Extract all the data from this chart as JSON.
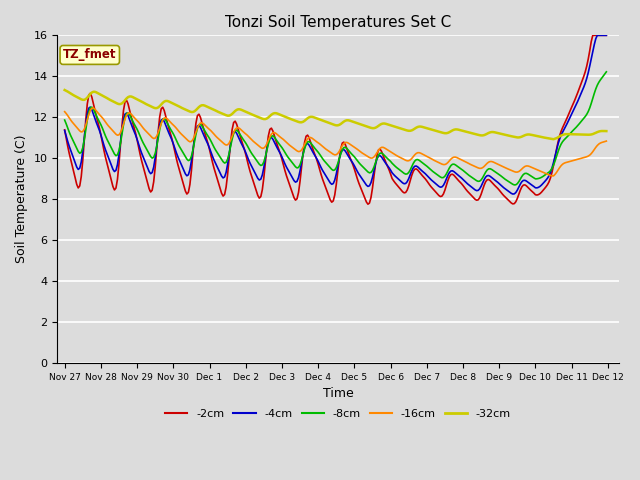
{
  "title": "Tonzi Soil Temperatures Set C",
  "xlabel": "Time",
  "ylabel": "Soil Temperature (C)",
  "ylim": [
    0,
    16
  ],
  "yticks": [
    0,
    2,
    4,
    6,
    8,
    10,
    12,
    14,
    16
  ],
  "bg_color": "#dcdcdc",
  "annotation_text": "TZ_fmet",
  "annotation_color": "#8b0000",
  "annotation_bg": "#ffffcc",
  "legend_entries": [
    "-2cm",
    "-4cm",
    "-8cm",
    "-16cm",
    "-32cm"
  ],
  "line_colors": [
    "#cc0000",
    "#0000cc",
    "#00bb00",
    "#ff8800",
    "#cccc00"
  ],
  "line_widths": [
    1.2,
    1.2,
    1.2,
    1.2,
    1.8
  ]
}
